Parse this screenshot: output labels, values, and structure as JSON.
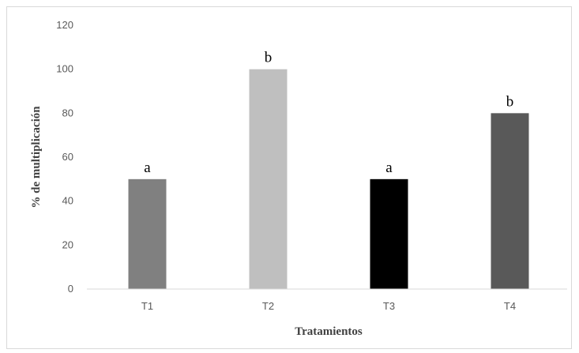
{
  "chart_data": {
    "type": "bar",
    "categories": [
      "T1",
      "T2",
      "T3",
      "T4"
    ],
    "values": [
      50,
      100,
      50,
      80
    ],
    "data_labels": [
      "a",
      "b",
      "a",
      "b"
    ],
    "colors": [
      "#808080",
      "#bfbfbf",
      "#000000",
      "#595959"
    ],
    "title": "",
    "xlabel": "Tratamientos",
    "ylabel": "% de multiplicación",
    "ylim": [
      0,
      120
    ],
    "yticks": [
      0,
      20,
      40,
      60,
      80,
      100,
      120
    ],
    "grid": false,
    "legend": "none"
  }
}
